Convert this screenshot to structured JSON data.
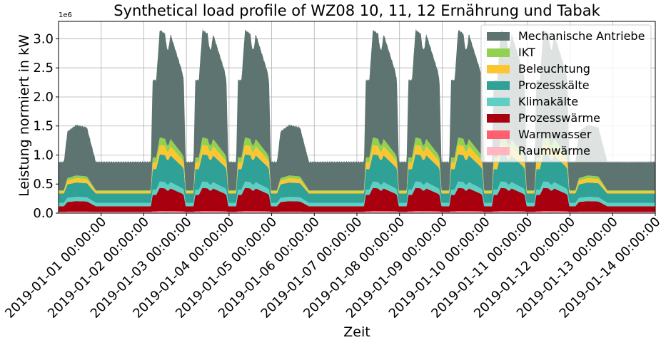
{
  "chart_data": {
    "type": "area",
    "stacked": true,
    "title": "Synthetical load profile of WZ08 10, 11, 12 Ernährung und Tabak",
    "xlabel": "Zeit",
    "ylabel": "Leistung normiert in kW",
    "y_offset_label": "1e6",
    "ylim": [
      0,
      3300000
    ],
    "yticks": [
      0,
      500000,
      1000000,
      1500000,
      2000000,
      2500000,
      3000000
    ],
    "ytick_labels": [
      "0.0",
      "0.5",
      "1.0",
      "1.5",
      "2.0",
      "2.5",
      "3.0"
    ],
    "xlim": [
      -1,
      13
    ],
    "xtick_labels": [
      "2019-01-01 00:00:00",
      "2019-01-02 00:00:00",
      "2019-01-03 00:00:00",
      "2019-01-04 00:00:00",
      "2019-01-05 00:00:00",
      "2019-01-06 00:00:00",
      "2019-01-07 00:00:00",
      "2019-01-08 00:00:00",
      "2019-01-09 00:00:00",
      "2019-01-10 00:00:00",
      "2019-01-11 00:00:00",
      "2019-01-12 00:00:00",
      "2019-01-13 00:00:00",
      "2019-01-14 00:00:00"
    ],
    "grid": true,
    "legend_position": "upper right",
    "day_types": [
      "sat",
      "sun",
      "work",
      "work",
      "work",
      "sat",
      "sun",
      "work",
      "work",
      "work",
      "work",
      "work",
      "sat",
      "sun",
      "work"
    ],
    "series": [
      {
        "name": "Raumwärme",
        "color": "#ffb6c1",
        "work_peak": 25000,
        "weekend_level": 15000
      },
      {
        "name": "Warmwasser",
        "color": "#ff6070",
        "work_peak": 10000,
        "weekend_level": 8000
      },
      {
        "name": "Prozesswärme",
        "color": "#a8000e",
        "work_peak": 400000,
        "weekend_level": 95000
      },
      {
        "name": "Klimakälte",
        "color": "#5ecfc3",
        "work_peak": 110000,
        "weekend_level": 60000
      },
      {
        "name": "Prozesskälte",
        "color": "#2fa196",
        "work_peak": 470000,
        "weekend_level": 160000
      },
      {
        "name": "Beleuchtung",
        "color": "#fcc631",
        "work_peak": 160000,
        "weekend_level": 40000
      },
      {
        "name": "IKT",
        "color": "#92d050",
        "work_peak": 130000,
        "weekend_level": 15000
      },
      {
        "name": "Mechanische Antriebe",
        "color": "#5d7470",
        "work_peak": 1850000,
        "weekend_level": 490000
      }
    ],
    "total": {
      "weekend_level": 880000,
      "workday_min": 2000000,
      "workday_peak": 3120000
    }
  }
}
